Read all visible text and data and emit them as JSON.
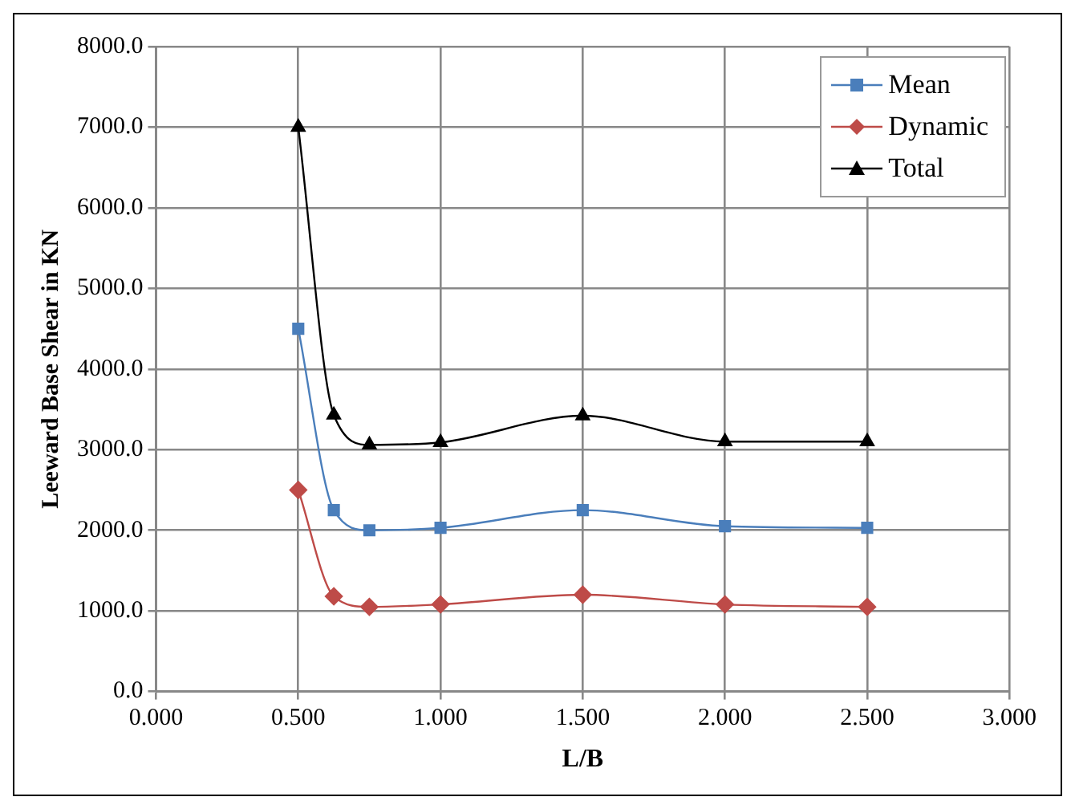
{
  "chart_data": {
    "type": "line",
    "xlabel": "L/B",
    "ylabel": "Leeward Base Shear in KN",
    "x": [
      0.5,
      0.625,
      0.75,
      1.0,
      1.5,
      2.0,
      2.5
    ],
    "series": [
      {
        "name": "Mean",
        "color": "#4a7ebb",
        "marker": "square",
        "values": [
          4500,
          2250,
          2000,
          2030,
          2250,
          2050,
          2030
        ]
      },
      {
        "name": "Dynamic",
        "color": "#be4b48",
        "marker": "diamond",
        "values": [
          2500,
          1180,
          1050,
          1080,
          1200,
          1080,
          1050
        ]
      },
      {
        "name": "Total",
        "color": "#000000",
        "marker": "triangle",
        "values": [
          7000,
          3430,
          3060,
          3090,
          3420,
          3100,
          3100
        ]
      }
    ],
    "xlim": [
      0,
      3
    ],
    "ylim": [
      0,
      8000
    ],
    "xticks": [
      {
        "value": 0,
        "label": "0.000"
      },
      {
        "value": 0.5,
        "label": "0.500"
      },
      {
        "value": 1,
        "label": "1.000"
      },
      {
        "value": 1.5,
        "label": "1.500"
      },
      {
        "value": 2,
        "label": "2.000"
      },
      {
        "value": 2.5,
        "label": "2.500"
      },
      {
        "value": 3,
        "label": "3.000"
      }
    ],
    "yticks": [
      {
        "value": 0,
        "label": "0.0"
      },
      {
        "value": 1000,
        "label": "1000.0"
      },
      {
        "value": 2000,
        "label": "2000.0"
      },
      {
        "value": 3000,
        "label": "3000.0"
      },
      {
        "value": 4000,
        "label": "4000.0"
      },
      {
        "value": 5000,
        "label": "5000.0"
      },
      {
        "value": 6000,
        "label": "6000.0"
      },
      {
        "value": 7000,
        "label": "7000.0"
      },
      {
        "value": 8000,
        "label": "8000.0"
      }
    ],
    "grid": true,
    "legend": "top right",
    "line_style": "solid"
  }
}
